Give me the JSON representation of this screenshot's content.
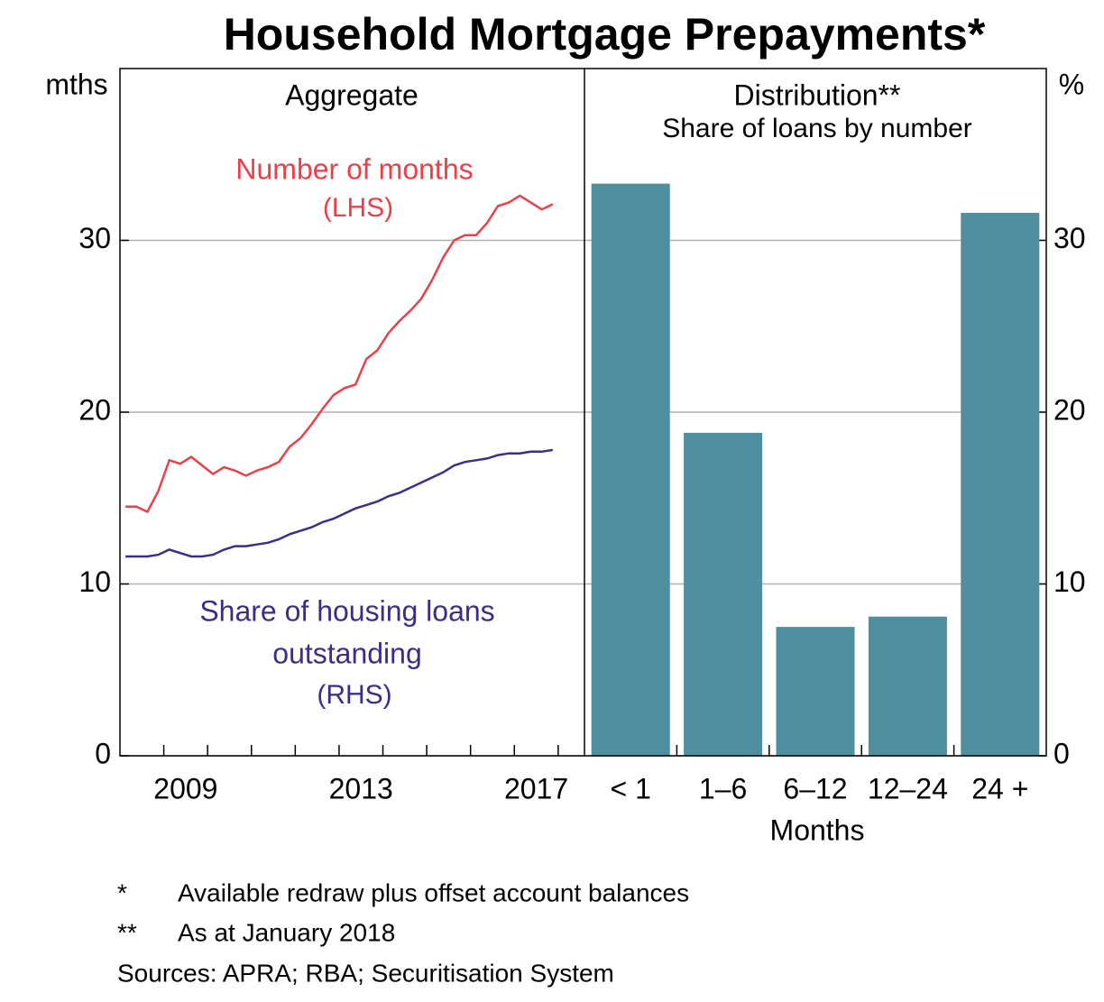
{
  "title": "Household Mortgage Prepayments*",
  "footnotes": [
    {
      "mark": "*",
      "text": "Available redraw plus offset account balances"
    },
    {
      "mark": "**",
      "text": "As at January 2018"
    }
  ],
  "sources": "Sources: APRA; RBA; Securitisation System",
  "chart_data": [
    {
      "type": "line",
      "title": "Aggregate",
      "y_unit": "mths",
      "ylim": [
        0,
        40
      ],
      "yticks": [
        0,
        10,
        20,
        30
      ],
      "grid": true,
      "xlim": [
        2008,
        2018.6
      ],
      "xticks": [
        {
          "value": 2009.5,
          "label": "2009"
        },
        {
          "value": 2013.5,
          "label": "2013"
        },
        {
          "value": 2017.5,
          "label": "2017"
        }
      ],
      "xtick_marks": [
        2009,
        2010,
        2011,
        2012,
        2013,
        2014,
        2015,
        2016,
        2017,
        2018
      ],
      "x": [
        2008.125,
        2008.375,
        2008.625,
        2008.875,
        2009.125,
        2009.375,
        2009.625,
        2009.875,
        2010.125,
        2010.375,
        2010.625,
        2010.875,
        2011.125,
        2011.375,
        2011.625,
        2011.875,
        2012.125,
        2012.375,
        2012.625,
        2012.875,
        2013.125,
        2013.375,
        2013.625,
        2013.875,
        2014.125,
        2014.375,
        2014.625,
        2014.875,
        2015.125,
        2015.375,
        2015.625,
        2015.875,
        2016.125,
        2016.375,
        2016.625,
        2016.875,
        2017.125,
        2017.375,
        2017.625,
        2017.875
      ],
      "series": [
        {
          "name": "Number of months",
          "label": [
            "Number of months",
            "(LHS)"
          ],
          "color": "#e8414a",
          "values": [
            14.5,
            14.5,
            14.2,
            15.4,
            17.2,
            17.0,
            17.4,
            16.9,
            16.4,
            16.8,
            16.6,
            16.3,
            16.6,
            16.8,
            17.1,
            18.0,
            18.5,
            19.3,
            20.2,
            21.0,
            21.4,
            21.6,
            23.1,
            23.6,
            24.6,
            25.3,
            25.9,
            26.6,
            27.7,
            29.0,
            30.0,
            30.3,
            30.3,
            31.0,
            32.0,
            32.2,
            32.6,
            32.2,
            31.8,
            32.1
          ]
        },
        {
          "name": "Share of housing loans outstanding",
          "label": [
            "Share of housing loans",
            "outstanding",
            "(RHS)"
          ],
          "color": "#3b2f85",
          "values": [
            11.6,
            11.6,
            11.6,
            11.7,
            12.0,
            11.8,
            11.6,
            11.6,
            11.7,
            12.0,
            12.2,
            12.2,
            12.3,
            12.4,
            12.6,
            12.9,
            13.1,
            13.3,
            13.6,
            13.8,
            14.1,
            14.4,
            14.6,
            14.8,
            15.1,
            15.3,
            15.6,
            15.9,
            16.2,
            16.5,
            16.9,
            17.1,
            17.2,
            17.3,
            17.5,
            17.6,
            17.6,
            17.7,
            17.7,
            17.8
          ]
        }
      ]
    },
    {
      "type": "bar",
      "title": "Distribution**",
      "subtitle": "Share of loans by number",
      "y_unit": "%",
      "ylim": [
        0,
        40
      ],
      "yticks": [
        0,
        10,
        20,
        30
      ],
      "grid": true,
      "x_label": "Months",
      "categories": [
        "< 1",
        "1–6",
        "6–12",
        "12–24",
        "24 +"
      ],
      "values": [
        33.3,
        18.8,
        7.5,
        8.1,
        31.6
      ],
      "color": "#4f8fa0"
    }
  ]
}
